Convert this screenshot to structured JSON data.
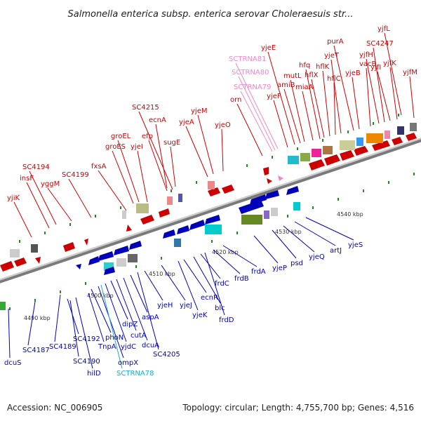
{
  "title": "Salmonella enterica subsp. enterica serovar Choleraesuis str...",
  "footer": {
    "accession": "Accession: NC_006905",
    "summary": "Topology: circular; Length: 4,755,700 bp; Genes: 4,516"
  },
  "colors": {
    "forward": "#cc0000",
    "reverse": "#0000bb",
    "rna": "#ee88cc",
    "rna_cyan": "#22aacc",
    "backbone": "#999999"
  },
  "ticks": [
    "4490 kbp",
    "4500 kbp",
    "4510 kbp",
    "4520 kbp",
    "4530 kbp",
    "4540 kbp"
  ],
  "labels_top": [
    "yjiK",
    "insF",
    "SC4194",
    "yggM",
    "SC4199",
    "fxsA",
    "groES",
    "groEL",
    "yjeI",
    "efp",
    "ecnA",
    "SC4215",
    "sugE",
    "yjeA",
    "yjeM",
    "yjeO",
    "orn",
    "SCTRNA79",
    "SCTRNA80",
    "SCTRNA81",
    "yjeF",
    "yjeE",
    "amiB",
    "mutL",
    "miaA",
    "hfq",
    "hflX",
    "hflK",
    "hflC",
    "yjeT",
    "purA",
    "yjeB",
    "vacB",
    "yjfH",
    "SC4247",
    "yjfI",
    "yjfK",
    "yjfL",
    "yjfM"
  ],
  "labels_bottom": [
    "dcuS",
    "SC4187",
    "SC4189",
    "SC4192",
    "SC4190",
    "hilD",
    "TnpA",
    "phoN",
    "ompX",
    "SCTRNA78",
    "yjdC",
    "dipZ",
    "cutA",
    "dcuA",
    "aspA",
    "SC4205",
    "yjeH",
    "yjeJ",
    "yjeK",
    "ecnR",
    "blc",
    "frdC",
    "frdD",
    "frdB",
    "frdA",
    "yjeP",
    "psd",
    "yjeQ",
    "artJ",
    "yjeS"
  ]
}
